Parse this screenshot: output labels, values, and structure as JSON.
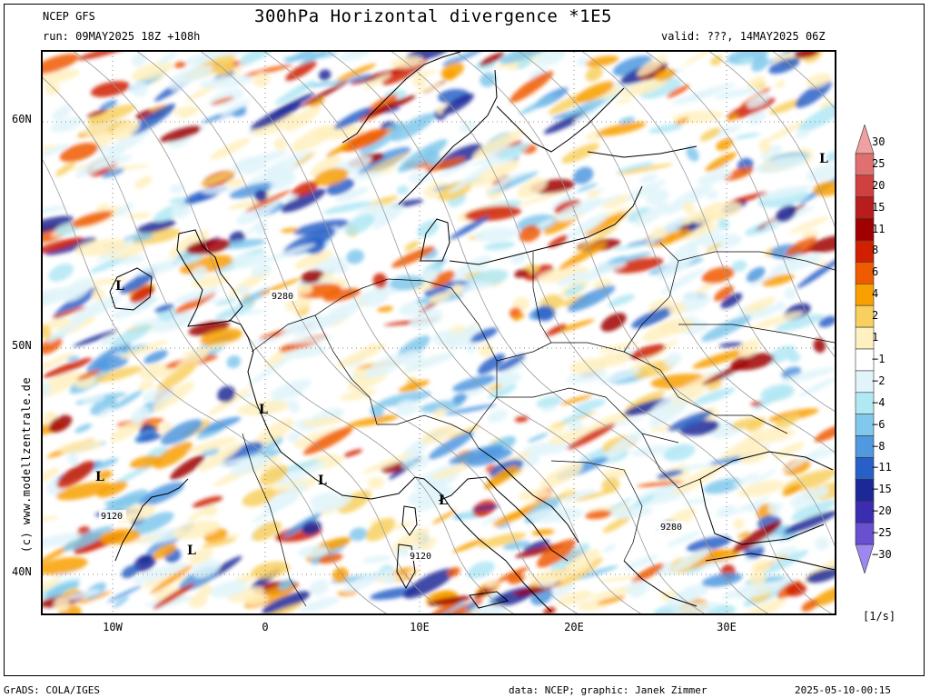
{
  "header": {
    "model": "NCEP GFS",
    "run": "run: 09MAY2025 18Z +108h",
    "title": "300hPa Horizontal divergence *1E5",
    "valid": "valid: ???, 14MAY2025 06Z"
  },
  "map": {
    "lat_labels": [
      "60N",
      "50N",
      "40N"
    ],
    "lon_labels": [
      "10W",
      "0",
      "10E",
      "20E",
      "30E"
    ],
    "low_markers": [
      "L",
      "L",
      "L",
      "L",
      "L",
      "L",
      "L"
    ],
    "contour_labels": [
      "9280",
      "9120",
      "9280",
      "9120"
    ]
  },
  "colorbar": {
    "units": "[1/s]",
    "levels": [
      "30",
      "25",
      "20",
      "15",
      "11",
      "8",
      "6",
      "4",
      "2",
      "1",
      "−1",
      "−2",
      "−4",
      "−6",
      "−8",
      "−11",
      "−15",
      "−20",
      "−25",
      "−30"
    ],
    "colors": [
      "#f0a0a0",
      "#e07070",
      "#d04040",
      "#b81c1c",
      "#a00000",
      "#d02000",
      "#f05a00",
      "#f8a000",
      "#f8d060",
      "#fff0c0",
      "#ffffff",
      "#e0f4fa",
      "#b0e8f4",
      "#80c8ec",
      "#5098e0",
      "#2860c8",
      "#1c2898",
      "#3c2cb0",
      "#6850d0",
      "#9c88f0"
    ]
  },
  "watermark": "(c)  www.modellzentrale.de",
  "footer": {
    "left": "GrADS: COLA/IGES",
    "middle": "data: NCEP; graphic: Janek Zimmer",
    "right": "2025-05-10-00:15"
  }
}
